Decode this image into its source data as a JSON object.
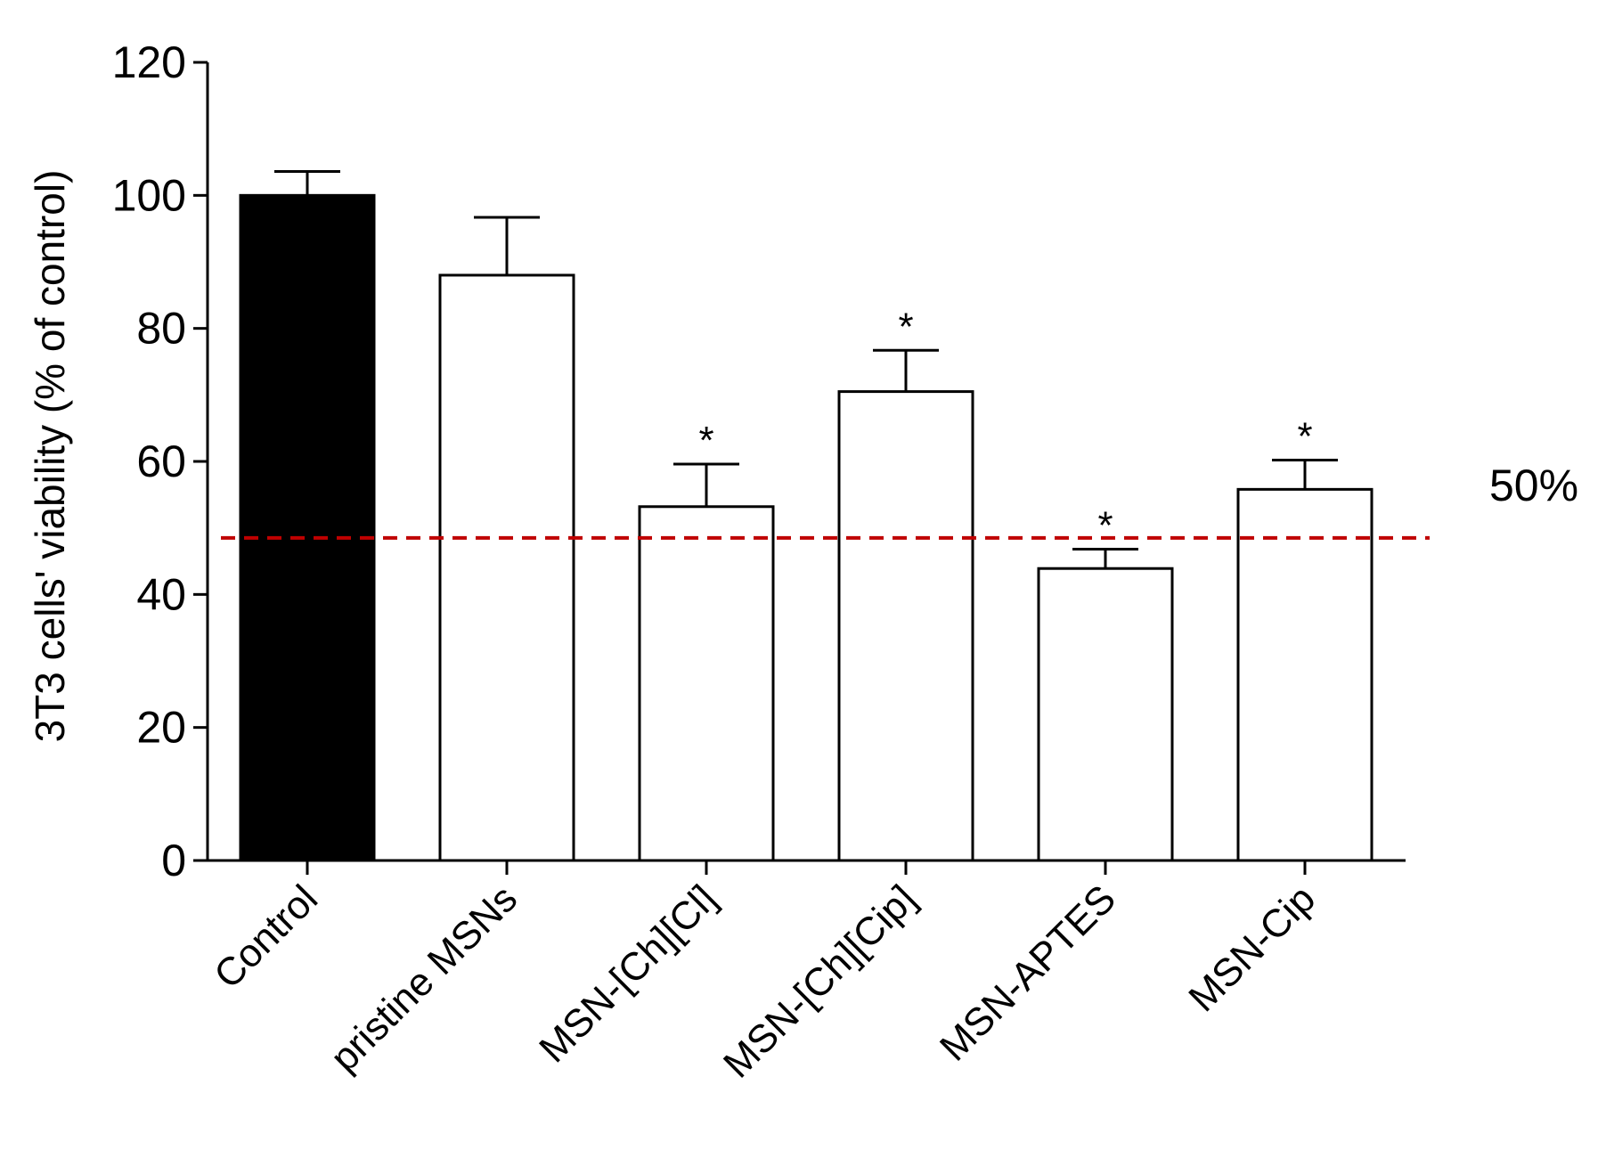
{
  "chart_data": {
    "type": "bar",
    "title": "",
    "xlabel": "",
    "ylabel": "3T3 cells'  viability (% of control)",
    "ylim": [
      0,
      120
    ],
    "yticks": [
      0,
      20,
      40,
      60,
      80,
      100,
      120
    ],
    "categories": [
      "Control",
      "pristine MSNs",
      "MSN-[Ch][Cl]",
      "MSN-[Ch][Cip]",
      "MSN-APTES",
      "MSN-Cip"
    ],
    "values": [
      100,
      88,
      53.2,
      70.5,
      43.9,
      55.8
    ],
    "errors": [
      3.6,
      8.7,
      6.4,
      6.2,
      2.9,
      4.4
    ],
    "significance": [
      "",
      "",
      "*",
      "*",
      "*",
      "*"
    ],
    "fill_colors": [
      "#000000",
      "#ffffff",
      "#ffffff",
      "#ffffff",
      "#ffffff",
      "#ffffff"
    ],
    "reference_line": {
      "value": 48.5,
      "label": "50%",
      "color": "#c00000"
    }
  }
}
